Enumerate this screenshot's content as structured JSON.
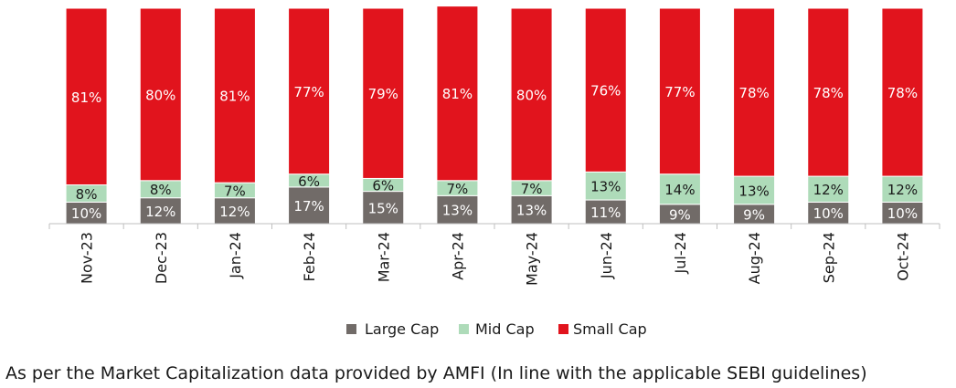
{
  "chart_data": {
    "type": "bar",
    "stacked": true,
    "categories": [
      "Nov-23",
      "Dec-23",
      "Jan-24",
      "Feb-24",
      "Mar-24",
      "Apr-24",
      "May-24",
      "Jun-24",
      "Jul-24",
      "Aug-24",
      "Sep-24",
      "Oct-24"
    ],
    "series": [
      {
        "name": "Large Cap",
        "color": "#716b68",
        "values": [
          10,
          12,
          12,
          17,
          15,
          13,
          13,
          11,
          9,
          9,
          10,
          10
        ],
        "labels": [
          "10%",
          "12%",
          "12%",
          "17%",
          "15%",
          "13%",
          "13%",
          "11%",
          "9%",
          "9%",
          "10%",
          "10%"
        ]
      },
      {
        "name": "Mid Cap",
        "color": "#aedbb9",
        "values": [
          8,
          8,
          7,
          6,
          6,
          7,
          7,
          13,
          14,
          13,
          12,
          12
        ],
        "labels": [
          "8%",
          "8%",
          "7%",
          "6%",
          "6%",
          "7%",
          "7%",
          "13%",
          "14%",
          "13%",
          "12%",
          "12%"
        ]
      },
      {
        "name": "Small Cap",
        "color": "#e1141d",
        "values": [
          81,
          80,
          81,
          77,
          79,
          81,
          80,
          76,
          77,
          78,
          78,
          78
        ],
        "labels": [
          "81%",
          "80%",
          "81%",
          "77%",
          "79%",
          "81%",
          "80%",
          "76%",
          "77%",
          "78%",
          "78%",
          "78%"
        ]
      }
    ],
    "ylim": [
      0,
      100
    ],
    "grid": false,
    "legend_position": "bottom"
  },
  "footnote": "As per the Market Capitalization data provided by AMFI (In line with the applicable SEBI guidelines)"
}
